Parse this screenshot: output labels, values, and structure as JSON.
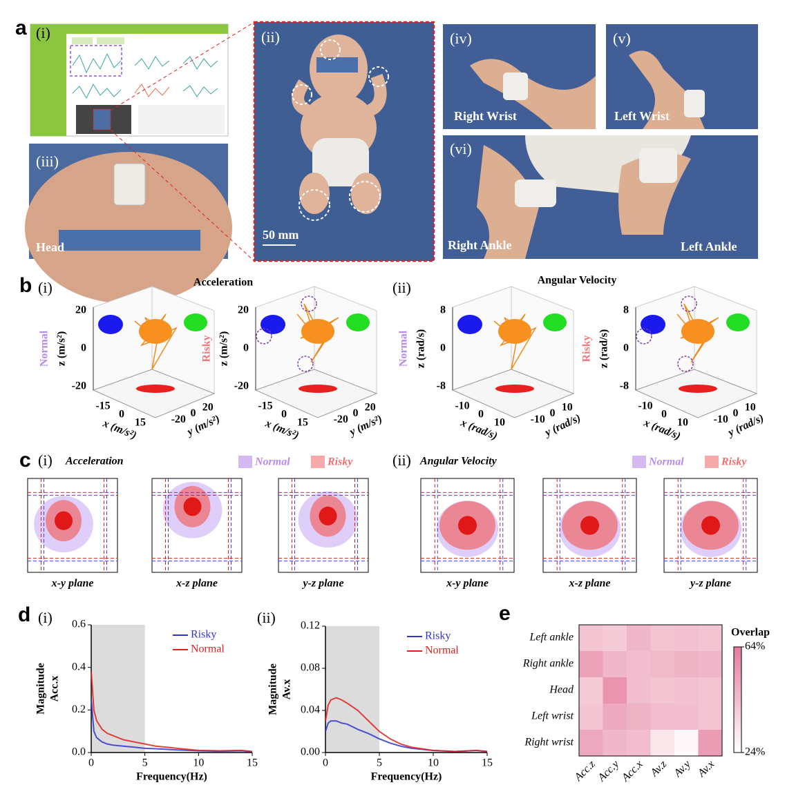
{
  "panel_a": {
    "label": "a",
    "photos": [
      {
        "tag": "(i)"
      },
      {
        "tag": "(ii)",
        "scale_bar": "50 mm"
      },
      {
        "tag": "(iii)",
        "caption": "Head"
      },
      {
        "tag": "(iv)",
        "caption": "Right Wrist"
      },
      {
        "tag": "(v)",
        "caption": "Left Wrist"
      },
      {
        "tag": "(vi)",
        "captions": [
          "Right Ankle",
          "Left Ankle"
        ]
      }
    ]
  },
  "panel_b": {
    "label": "b",
    "groups": [
      {
        "tag": "(i)",
        "title": "Acceleration",
        "plots": [
          {
            "row_label": "Normal",
            "row_color": "#b48be6",
            "risky": false,
            "z_label": "z (m/s²)",
            "x_label": "x (m/s²)",
            "y_label": "y (m/s²)",
            "z_ticks": [
              "20",
              "0",
              "-20"
            ],
            "x_ticks": [
              "-15",
              "0",
              "15"
            ],
            "y_ticks": [
              "-20",
              "0",
              "20"
            ]
          },
          {
            "row_label": "Risky",
            "row_color": "#f07a7a",
            "risky": true,
            "z_label": "z (m/s²)",
            "x_label": "x (m/s²)",
            "y_label": "y (m/s²)",
            "z_ticks": [
              "20",
              "0",
              "-20"
            ],
            "x_ticks": [
              "-15",
              "0",
              "15"
            ],
            "y_ticks": [
              "-20",
              "0",
              "20"
            ]
          }
        ]
      },
      {
        "tag": "(ii)",
        "title": "Angular Velocity",
        "plots": [
          {
            "row_label": "Normal",
            "row_color": "#b48be6",
            "risky": false,
            "z_label": "z (rad/s)",
            "x_label": "x (rad/s)",
            "y_label": "y (rad/s)",
            "z_ticks": [
              "8",
              "0",
              "-8"
            ],
            "x_ticks": [
              "-10",
              "0",
              "10"
            ],
            "y_ticks": [
              "-10",
              "0",
              "10"
            ]
          },
          {
            "row_label": "Risky",
            "row_color": "#f07a7a",
            "risky": true,
            "z_label": "z (rad/s)",
            "x_label": "x (rad/s)",
            "y_label": "y (rad/s)",
            "z_ticks": [
              "8",
              "0",
              "-8"
            ],
            "x_ticks": [
              "-10",
              "0",
              "10"
            ],
            "y_ticks": [
              "-10",
              "0",
              "10"
            ]
          }
        ]
      }
    ]
  },
  "panel_c": {
    "label": "c",
    "groups": [
      {
        "tag": "(i)",
        "title": "Acceleration",
        "legend": [
          {
            "name": "Normal",
            "color": "#b98be8"
          },
          {
            "name": "Risky",
            "color": "#f07070"
          }
        ],
        "planes": [
          "x-y plane",
          "x-z plane",
          "y-z plane"
        ]
      },
      {
        "tag": "(ii)",
        "title": "Angular Velocity",
        "legend": [
          {
            "name": "Normal",
            "color": "#b98be8"
          },
          {
            "name": "Risky",
            "color": "#f07070"
          }
        ],
        "planes": [
          "x-y plane",
          "x-z plane",
          "y-z plane"
        ]
      }
    ]
  },
  "panel_d": {
    "label": "d",
    "tags": [
      "(i)",
      "(ii)"
    ]
  },
  "panel_e": {
    "label": "e"
  },
  "chart_data": [
    {
      "type": "line",
      "ylabel": [
        "Magnitude",
        "Acc.x"
      ],
      "xlabel": "Frequency(Hz)",
      "x": [
        0,
        0.25,
        0.5,
        1,
        1.5,
        2,
        3,
        4,
        5,
        6,
        7,
        8,
        10,
        12,
        14,
        15
      ],
      "xlim": [
        0,
        15
      ],
      "xticks": [
        0,
        5,
        10,
        15
      ],
      "ylim": [
        0,
        0.6
      ],
      "yticks": [
        {
          "value": 0,
          "label": "0.0"
        },
        0.2,
        0.4,
        0.6
      ],
      "highlight_x": [
        0,
        5
      ],
      "highlight_color": "#dcdcdc",
      "series": [
        {
          "name": "Risky",
          "color": "#3333cc",
          "values": [
            0.25,
            0.1,
            0.07,
            0.05,
            0.04,
            0.035,
            0.03,
            0.025,
            0.02,
            0.018,
            0.015,
            0.012,
            0.008,
            0.006,
            0.008,
            0.004
          ]
        },
        {
          "name": "Normal",
          "color": "#e02020",
          "values": [
            0.38,
            0.2,
            0.15,
            0.11,
            0.09,
            0.08,
            0.06,
            0.05,
            0.04,
            0.03,
            0.025,
            0.02,
            0.01,
            0.008,
            0.01,
            0.005
          ]
        }
      ]
    },
    {
      "type": "line",
      "ylabel": [
        "Magnitude",
        "Av.x"
      ],
      "xlabel": "Frequency(Hz)",
      "x": [
        0,
        0.25,
        0.5,
        1,
        1.5,
        2,
        3,
        4,
        5,
        6,
        7,
        8,
        10,
        12,
        14,
        15
      ],
      "xlim": [
        0,
        15
      ],
      "xticks": [
        0,
        5,
        10,
        15
      ],
      "ylim": [
        0,
        0.12
      ],
      "yticks": [
        {
          "value": 0,
          "label": "0.00"
        },
        0.04,
        0.08,
        0.12
      ],
      "highlight_x": [
        0,
        5
      ],
      "highlight_color": "#dcdcdc",
      "series": [
        {
          "name": "Risky",
          "color": "#3333cc",
          "values": [
            0.02,
            0.028,
            0.03,
            0.03,
            0.028,
            0.027,
            0.022,
            0.018,
            0.013,
            0.009,
            0.006,
            0.004,
            0.002,
            0.001,
            0.002,
            0.001
          ]
        },
        {
          "name": "Normal",
          "color": "#e02020",
          "values": [
            0.03,
            0.045,
            0.05,
            0.052,
            0.05,
            0.047,
            0.04,
            0.03,
            0.02,
            0.013,
            0.008,
            0.005,
            0.002,
            0.001,
            0.002,
            0.001
          ]
        }
      ]
    },
    {
      "type": "heatmap",
      "rows": [
        "Left ankle",
        "Right ankle",
        "Head",
        "Left wrist",
        "Right wrist"
      ],
      "columns": [
        "Acc.z",
        "Acc.y",
        "Acc.x",
        "Av.z",
        "Av.y",
        "Av.x"
      ],
      "values": [
        [
          42,
          40,
          46,
          42,
          43,
          42
        ],
        [
          52,
          46,
          44,
          45,
          47,
          46
        ],
        [
          40,
          56,
          44,
          42,
          43,
          42
        ],
        [
          42,
          50,
          47,
          44,
          44,
          42
        ],
        [
          50,
          46,
          44,
          32,
          26,
          54
        ]
      ],
      "colorbar": {
        "title": "Overlap",
        "lim": [
          24,
          64
        ],
        "ticks": [
          {
            "value": 64,
            "label": "64%"
          },
          {
            "value": 24,
            "label": "24%"
          }
        ],
        "colors": [
          "#ffffff",
          "#e47b9c"
        ]
      }
    }
  ]
}
